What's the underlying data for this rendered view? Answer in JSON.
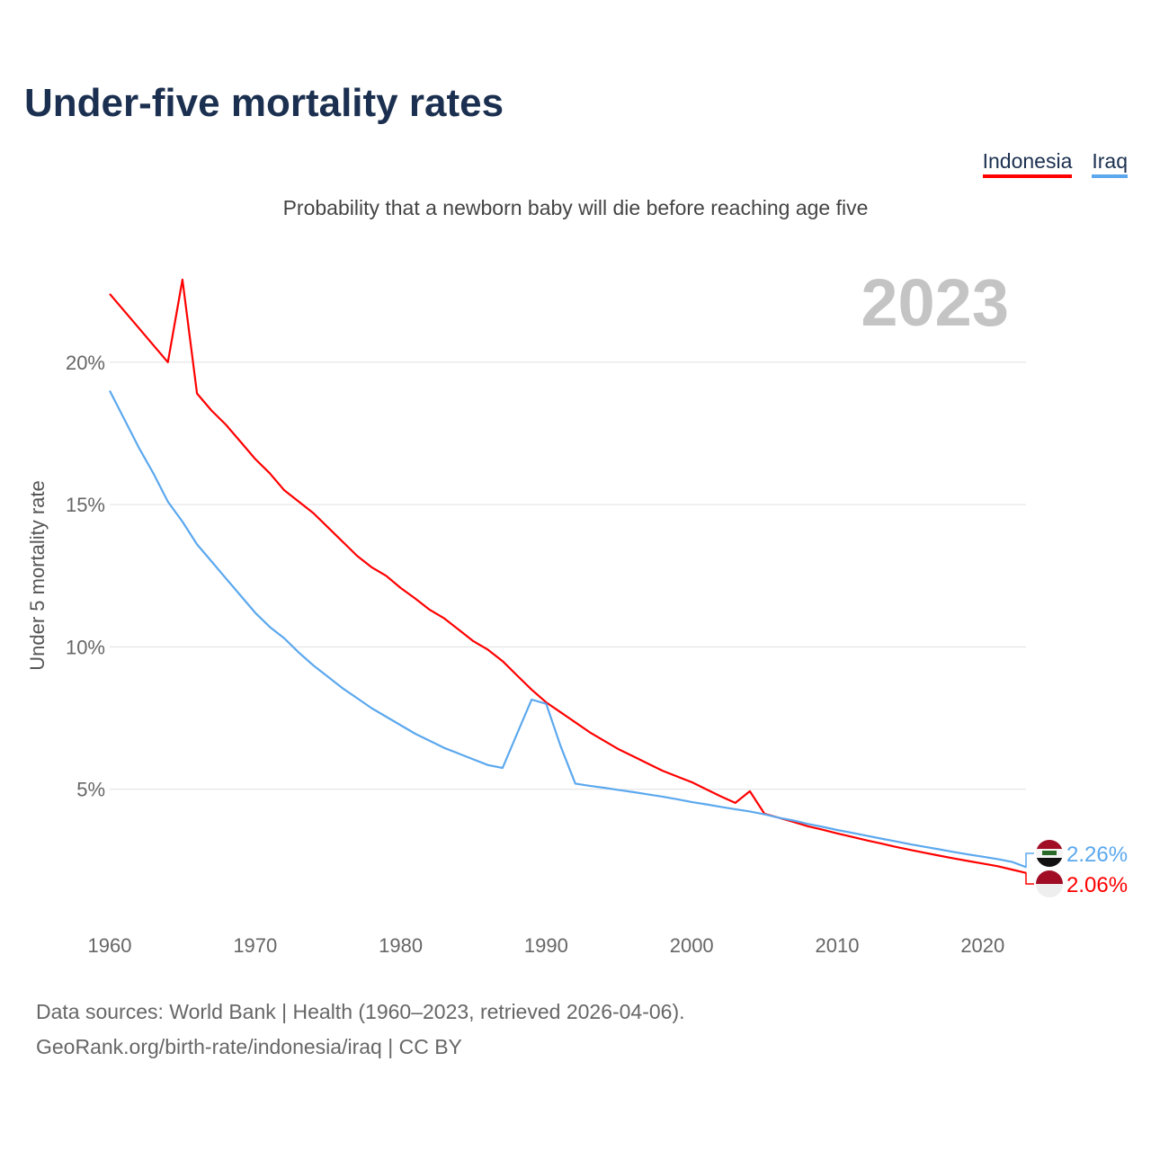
{
  "header": {
    "title": "Under-five mortality rates",
    "subtitle": "Probability that a newborn baby will die before reaching age five",
    "year": "2023"
  },
  "footer": {
    "line1": "Data sources: World Bank | Health (1960–2023, retrieved 2026-04-06).",
    "line2": "GeoRank.org/birth-rate/indonesia/iraq | CC BY"
  },
  "chart_data": {
    "type": "line",
    "title": "Under-five mortality rates",
    "xlabel": "",
    "ylabel": "Under 5 mortality rate",
    "xlim": [
      1960,
      2023
    ],
    "ylim": [
      0,
      23
    ],
    "xticks": [
      1960,
      1970,
      1980,
      1990,
      2000,
      2010,
      2020
    ],
    "yticks": [
      {
        "v": 5,
        "label": "5%"
      },
      {
        "v": 10,
        "label": "10%"
      },
      {
        "v": 15,
        "label": "15%"
      },
      {
        "v": 20,
        "label": "20%"
      }
    ],
    "grid": true,
    "legend_position": "top-right",
    "x_start": 1960,
    "series": [
      {
        "name": "Indonesia",
        "color": "#ff0000",
        "end_label": "2.06%",
        "flag": "indonesia",
        "values": [
          22.4,
          21.8,
          21.2,
          20.6,
          20.0,
          22.9,
          18.9,
          18.3,
          17.8,
          17.2,
          16.6,
          16.1,
          15.5,
          15.1,
          14.7,
          14.2,
          13.7,
          13.2,
          12.8,
          12.5,
          12.07,
          11.7,
          11.3,
          11.0,
          10.6,
          10.2,
          9.9,
          9.5,
          9.0,
          8.5,
          8.05,
          7.7,
          7.35,
          7.0,
          6.7,
          6.4,
          6.15,
          5.9,
          5.65,
          5.45,
          5.25,
          5.0,
          4.75,
          4.52,
          4.93,
          4.14,
          4.0,
          3.85,
          3.7,
          3.58,
          3.45,
          3.33,
          3.21,
          3.1,
          2.98,
          2.87,
          2.77,
          2.67,
          2.57,
          2.48,
          2.39,
          2.3,
          2.18,
          2.06
        ]
      },
      {
        "name": "Iraq",
        "color": "#5ba8ee",
        "end_label": "2.26%",
        "flag": "iraq",
        "values": [
          19.0,
          18.0,
          17.0,
          16.1,
          15.1,
          14.4,
          13.6,
          13.0,
          12.4,
          11.8,
          11.2,
          10.7,
          10.3,
          9.8,
          9.35,
          8.95,
          8.55,
          8.2,
          7.85,
          7.55,
          7.25,
          6.95,
          6.7,
          6.45,
          6.25,
          6.05,
          5.85,
          5.75,
          6.95,
          8.15,
          8.0,
          6.5,
          5.2,
          5.12,
          5.05,
          4.97,
          4.9,
          4.82,
          4.74,
          4.65,
          4.55,
          4.47,
          4.38,
          4.3,
          4.22,
          4.12,
          4.0,
          3.9,
          3.78,
          3.68,
          3.57,
          3.47,
          3.37,
          3.27,
          3.17,
          3.07,
          2.98,
          2.89,
          2.8,
          2.71,
          2.63,
          2.55,
          2.45,
          2.26
        ]
      }
    ]
  }
}
